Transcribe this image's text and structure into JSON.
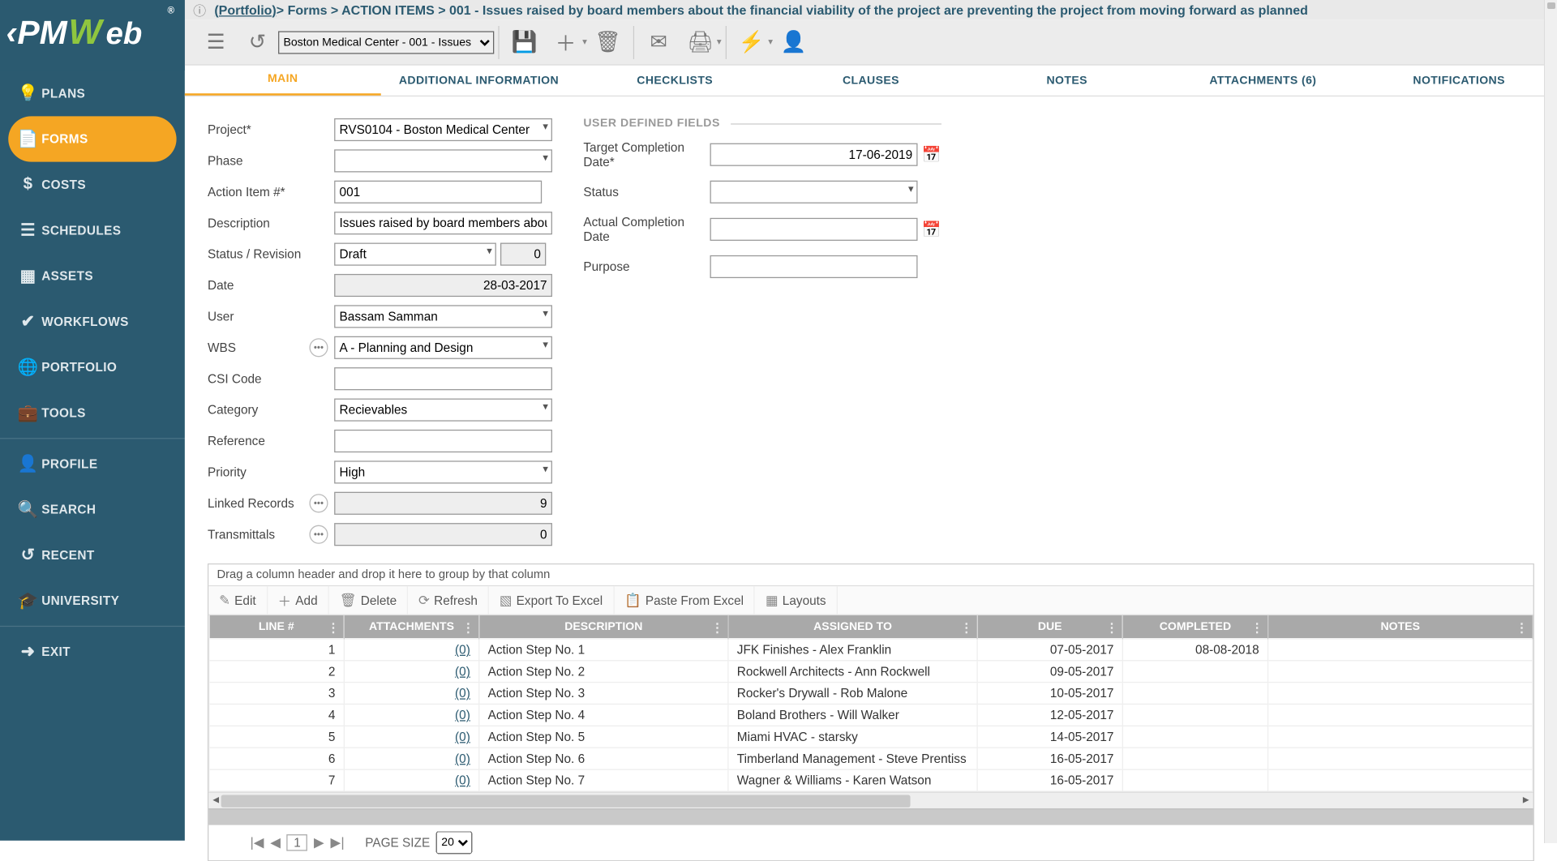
{
  "logo": {
    "text": "PMWeb",
    "superscript": "®"
  },
  "sidebar": [
    {
      "icon": "💡",
      "label": "PLANS"
    },
    {
      "icon": "📄",
      "label": "FORMS",
      "active": true
    },
    {
      "icon": "$",
      "label": "COSTS"
    },
    {
      "icon": "☰",
      "label": "SCHEDULES"
    },
    {
      "icon": "▦",
      "label": "ASSETS"
    },
    {
      "icon": "✔",
      "label": "WORKFLOWS"
    },
    {
      "icon": "🌐",
      "label": "PORTFOLIO"
    },
    {
      "icon": "💼",
      "label": "TOOLS"
    },
    {
      "sep": true
    },
    {
      "icon": "👤",
      "label": "PROFILE"
    },
    {
      "icon": "🔍",
      "label": "SEARCH"
    },
    {
      "icon": "↺",
      "label": "RECENT"
    },
    {
      "icon": "🎓",
      "label": "UNIVERSITY"
    },
    {
      "sep": true
    },
    {
      "icon": "➜",
      "label": "EXIT"
    }
  ],
  "breadcrumb": {
    "info": "ⓘ",
    "portfolio": "(Portfolio)",
    "tail": " > Forms > ACTION ITEMS > 001 - Issues raised by board members about the financial viability of the project are preventing the project from moving forward as planned"
  },
  "toolbar": {
    "record_select": "Boston Medical Center - 001 - Issues"
  },
  "tabs": [
    "MAIN",
    "ADDITIONAL INFORMATION",
    "CHECKLISTS",
    "CLAUSES",
    "NOTES",
    "ATTACHMENTS (6)",
    "NOTIFICATIONS"
  ],
  "form": {
    "project_label": "Project*",
    "project": "RVS0104 - Boston Medical Center",
    "phase_label": "Phase",
    "phase": "",
    "actionno_label": "Action Item #*",
    "actionno": "001",
    "desc_label": "Description",
    "desc": "Issues raised by board members about t",
    "statusrev_label": "Status / Revision",
    "status": "Draft",
    "revision": "0",
    "date_label": "Date",
    "date": "28-03-2017",
    "user_label": "User",
    "user": "Bassam Samman",
    "wbs_label": "WBS",
    "wbs": "A - Planning and Design",
    "csi_label": "CSI Code",
    "csi": "",
    "cat_label": "Category",
    "cat": "Recievables",
    "ref_label": "Reference",
    "ref": "",
    "prio_label": "Priority",
    "prio": "High",
    "linked_label": "Linked Records",
    "linked": "9",
    "trans_label": "Transmittals",
    "trans": "0"
  },
  "udf": {
    "heading": "USER DEFINED FIELDS",
    "target_label": "Target Completion Date*",
    "target": "17-06-2019",
    "status_label": "Status",
    "status": "",
    "actual_label": "Actual Completion Date",
    "actual": "",
    "purpose_label": "Purpose",
    "purpose": ""
  },
  "grid": {
    "group_hint": "Drag a column header and drop it here to group by that column",
    "toolbar": {
      "edit": "Edit",
      "add": "Add",
      "delete": "Delete",
      "refresh": "Refresh",
      "excel": "Export To Excel",
      "paste": "Paste From Excel",
      "layouts": "Layouts"
    },
    "cols": {
      "line": "LINE #",
      "att": "ATTACHMENTS",
      "desc": "DESCRIPTION",
      "assigned": "ASSIGNED TO",
      "due": "DUE",
      "completed": "COMPLETED",
      "notes": "NOTES"
    },
    "rows": [
      {
        "n": "1",
        "att": "(0)",
        "desc": "Action Step No. 1",
        "assigned": "JFK Finishes - Alex Franklin",
        "due": "07-05-2017",
        "completed": "08-08-2018",
        "notes": ""
      },
      {
        "n": "2",
        "att": "(0)",
        "desc": "Action Step No. 2",
        "assigned": "Rockwell Architects - Ann Rockwell",
        "due": "09-05-2017",
        "completed": "",
        "notes": ""
      },
      {
        "n": "3",
        "att": "(0)",
        "desc": "Action Step No. 3",
        "assigned": "Rocker's Drywall - Rob Malone",
        "due": "10-05-2017",
        "completed": "",
        "notes": ""
      },
      {
        "n": "4",
        "att": "(0)",
        "desc": "Action Step No. 4",
        "assigned": "Boland Brothers - Will Walker",
        "due": "12-05-2017",
        "completed": "",
        "notes": ""
      },
      {
        "n": "5",
        "att": "(0)",
        "desc": "Action Step No. 5",
        "assigned": "Miami HVAC - starsky",
        "due": "14-05-2017",
        "completed": "",
        "notes": ""
      },
      {
        "n": "6",
        "att": "(0)",
        "desc": "Action Step No. 6",
        "assigned": "Timberland Management - Steve Prentiss",
        "due": "16-05-2017",
        "completed": "",
        "notes": ""
      },
      {
        "n": "7",
        "att": "(0)",
        "desc": "Action Step No. 7",
        "assigned": "Wagner & Williams - Karen Watson",
        "due": "16-05-2017",
        "completed": "",
        "notes": ""
      }
    ]
  },
  "pager": {
    "label": "PAGE SIZE",
    "page": "1",
    "size": "20"
  }
}
